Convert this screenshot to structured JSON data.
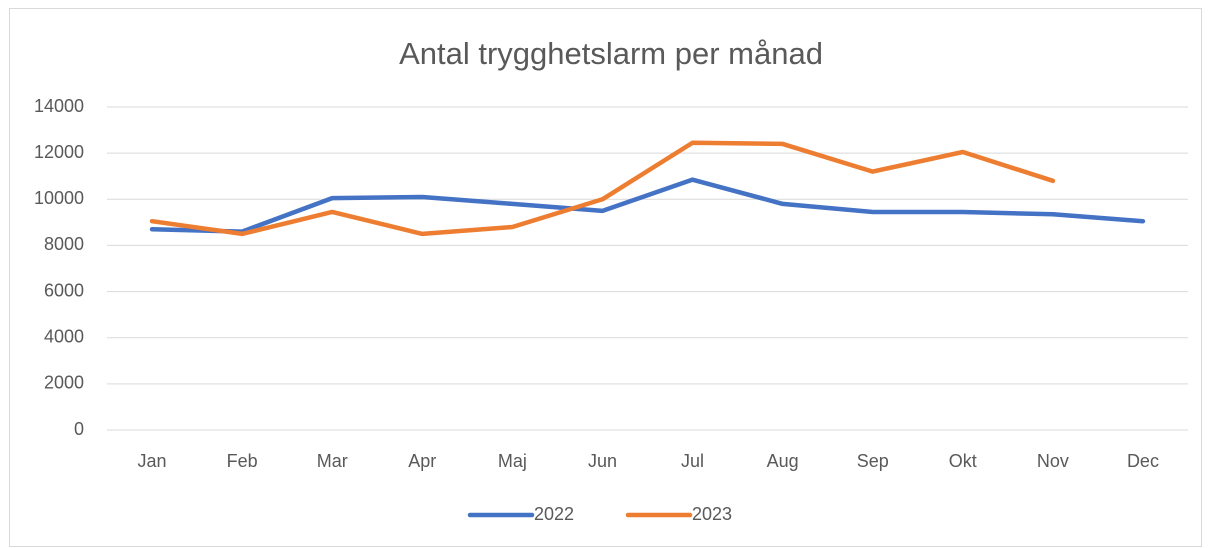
{
  "chart_data": {
    "type": "line",
    "title": "Antal trygghetslarm per månad",
    "categories": [
      "Jan",
      "Feb",
      "Mar",
      "Apr",
      "Maj",
      "Jun",
      "Jul",
      "Aug",
      "Sep",
      "Okt",
      "Nov",
      "Dec"
    ],
    "series": [
      {
        "name": "2022",
        "color": "#4472c4",
        "values": [
          8700,
          8600,
          10050,
          10100,
          9800,
          9500,
          10850,
          9800,
          9450,
          9450,
          9350,
          9050
        ]
      },
      {
        "name": "2023",
        "color": "#ed7d31",
        "values": [
          9050,
          8500,
          9450,
          8500,
          8800,
          10000,
          12450,
          12400,
          11200,
          12050,
          10800,
          null
        ]
      }
    ],
    "ylim": [
      0,
      14000
    ],
    "yticks": [
      0,
      2000,
      4000,
      6000,
      8000,
      10000,
      12000,
      14000
    ],
    "grid": true,
    "legend": "bottom"
  }
}
